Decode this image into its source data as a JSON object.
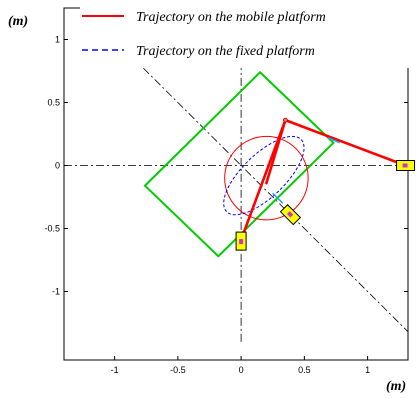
{
  "chart_data": {
    "type": "line",
    "xlabel": "(m)",
    "ylabel": "(m)",
    "xlim": [
      -1.4,
      1.4
    ],
    "ylim": [
      -1.4,
      1.25
    ],
    "xticks": [
      -1,
      -0.5,
      0,
      0.5,
      1
    ],
    "yticks": [
      1,
      0.5,
      0,
      -0.5,
      -1
    ],
    "xtick_labels": [
      "-1",
      "-0.5",
      "0",
      "0.5",
      "1"
    ],
    "ytick_labels": [
      "1",
      "0.5",
      "0",
      "-0.5",
      "-1"
    ],
    "grid": false,
    "legend_position": "top",
    "series": [
      {
        "name": "Trajectory on the mobile platform",
        "style": "solid",
        "color": "#ff0000",
        "shape": "circle",
        "center": [
          0.2,
          -0.1
        ],
        "radius": 0.33
      },
      {
        "name": "Trajectory on the fixed platform",
        "style": "dashed",
        "color": "#0000ff",
        "shape": "ellipse",
        "center": [
          0.18,
          -0.08
        ],
        "semi_axes": [
          0.41,
          0.17
        ],
        "rotation_deg": 44
      }
    ],
    "mobile_platform_square": {
      "color": "#00cc00",
      "vertices": [
        [
          0.15,
          0.74
        ],
        [
          0.73,
          0.18
        ],
        [
          -0.18,
          -0.72
        ],
        [
          -0.76,
          -0.16
        ]
      ]
    },
    "fixed_diagonals": {
      "color": "#000000",
      "style": "dashdot",
      "lines": [
        [
          [
            -1.4,
            1.4
          ],
          [
            1.4,
            -1.4
          ]
        ],
        [
          [
            -1.4,
            0
          ],
          [
            1.4,
            0
          ]
        ],
        [
          [
            0,
            -1.4
          ],
          [
            0,
            1.25
          ]
        ]
      ]
    },
    "links": {
      "color": "#ff0000",
      "segments": [
        [
          [
            1.3,
            0
          ],
          [
            0.35,
            0.36
          ]
        ],
        [
          [
            0.35,
            0.36
          ],
          [
            0,
            -0.59
          ]
        ],
        [
          [
            0.35,
            0.36
          ],
          [
            0.2,
            -0.14
          ]
        ]
      ]
    },
    "actuators": {
      "fill": "#ffff00",
      "items": [
        {
          "center": [
            1.3,
            0
          ],
          "angle_deg": 0
        },
        {
          "center": [
            0,
            -0.6
          ],
          "angle_deg": 90
        },
        {
          "center": [
            0.39,
            -0.39
          ],
          "angle_deg": -45
        }
      ]
    }
  }
}
